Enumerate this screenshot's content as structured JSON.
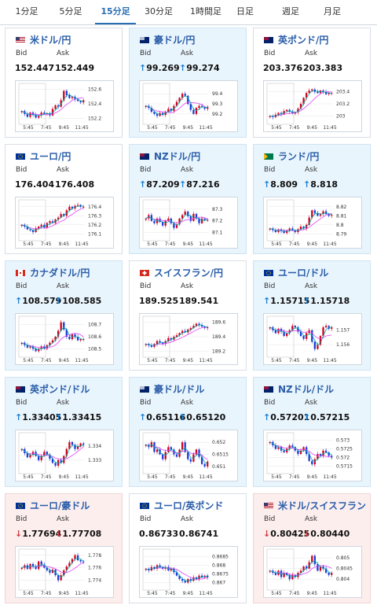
{
  "tabs": [
    "1分足",
    "5分足",
    "15分足",
    "30分足",
    "1時間足",
    "日足",
    "週足",
    "月足"
  ],
  "active_tab": 2,
  "bid_label": "Bid",
  "ask_label": "Ask",
  "arrow_up": "↑",
  "arrow_down": "↓",
  "colors": {
    "up_bg": "#e9f5fd",
    "down_bg": "#fdeeee",
    "candle_up": "#d0021b",
    "candle_down": "#1a3bd6",
    "ma1": "#e040fb",
    "ma2": "#00a8a8",
    "link": "#2a5da8"
  },
  "cards": [
    {
      "name": "米ドル/円",
      "flag": "us-jp",
      "trend": "flat",
      "bid": "152.447",
      "ask": "152.449",
      "chart_data": {
        "type": "candlestick",
        "x_ticks": [
          "5:45",
          "7:45",
          "9:45",
          "11:45"
        ],
        "y_ticks": [
          "152.6",
          "152.4",
          "152.2"
        ],
        "ylim": [
          152.15,
          152.65
        ],
        "closes": [
          152.3,
          152.26,
          152.22,
          152.28,
          152.25,
          152.21,
          152.24,
          152.28,
          152.26,
          152.27,
          152.24,
          152.33,
          152.38,
          152.36,
          152.45,
          152.58,
          152.52,
          152.48,
          152.5,
          152.46,
          152.44,
          152.42,
          152.45
        ]
      }
    },
    {
      "name": "豪ドル/円",
      "flag": "au-jp",
      "trend": "up",
      "bid": "99.269",
      "ask": "99.274",
      "chart_data": {
        "type": "candlestick",
        "x_ticks": [
          "5:45",
          "7:45",
          "9:45",
          "11:45"
        ],
        "y_ticks": [
          "99.4",
          "99.3",
          "99.2"
        ],
        "ylim": [
          99.12,
          99.48
        ],
        "closes": [
          99.28,
          99.26,
          99.22,
          99.2,
          99.18,
          99.21,
          99.19,
          99.22,
          99.25,
          99.23,
          99.28,
          99.32,
          99.36,
          99.4,
          99.38,
          99.3,
          99.24,
          99.2,
          99.26,
          99.28,
          99.27,
          99.25,
          99.27
        ]
      }
    },
    {
      "name": "英ポンド/円",
      "flag": "gb-jp",
      "trend": "flat",
      "bid": "203.376",
      "ask": "203.383",
      "chart_data": {
        "type": "candlestick",
        "x_ticks": [
          "5:45",
          "7:45",
          "9:45",
          "11:45"
        ],
        "y_ticks": [
          "203.4",
          "203.2",
          "203"
        ],
        "ylim": [
          202.9,
          203.5
        ],
        "closes": [
          203.0,
          202.98,
          203.02,
          203.05,
          203.03,
          203.08,
          203.1,
          203.07,
          203.04,
          203.06,
          203.12,
          203.2,
          203.3,
          203.38,
          203.42,
          203.44,
          203.4,
          203.38,
          203.42,
          203.4,
          203.36,
          203.38,
          203.38
        ]
      }
    },
    {
      "name": "ユーロ/円",
      "flag": "eu-jp",
      "trend": "flat",
      "bid": "176.404",
      "ask": "176.408",
      "chart_data": {
        "type": "candlestick",
        "x_ticks": [
          "5:45",
          "7:45",
          "9:45",
          "11:45"
        ],
        "y_ticks": [
          "176.4",
          "176.3",
          "176.2",
          "176.1"
        ],
        "ylim": [
          176.05,
          176.45
        ],
        "closes": [
          176.2,
          176.18,
          176.15,
          176.14,
          176.12,
          176.16,
          176.18,
          176.2,
          176.17,
          176.22,
          176.24,
          176.22,
          176.26,
          176.28,
          176.32,
          176.3,
          176.36,
          176.4,
          176.38,
          176.41,
          176.42,
          176.4,
          176.4
        ]
      }
    },
    {
      "name": "NZドル/円",
      "flag": "nz-jp",
      "trend": "up",
      "bid": "87.209",
      "ask": "87.216",
      "chart_data": {
        "type": "candlestick",
        "x_ticks": [
          "5:45",
          "7:45",
          "9:45",
          "11:45"
        ],
        "y_ticks": [
          "87.3",
          "87.2",
          "87.1"
        ],
        "ylim": [
          87.05,
          87.36
        ],
        "closes": [
          87.22,
          87.25,
          87.2,
          87.18,
          87.22,
          87.19,
          87.16,
          87.2,
          87.22,
          87.18,
          87.14,
          87.17,
          87.22,
          87.25,
          87.28,
          87.24,
          87.2,
          87.26,
          87.22,
          87.18,
          87.22,
          87.21,
          87.21
        ]
      }
    },
    {
      "name": "ランド/円",
      "flag": "za-jp",
      "trend": "up",
      "bid": "8.809",
      "ask": "8.818",
      "chart_data": {
        "type": "candlestick",
        "x_ticks": [
          "5:45",
          "7:45",
          "9:45",
          "11:45"
        ],
        "y_ticks": [
          "8.82",
          "8.81",
          "8.8",
          "8.79"
        ],
        "ylim": [
          8.785,
          8.825
        ],
        "closes": [
          8.796,
          8.794,
          8.792,
          8.795,
          8.793,
          8.791,
          8.794,
          8.796,
          8.794,
          8.792,
          8.795,
          8.798,
          8.796,
          8.8,
          8.808,
          8.816,
          8.813,
          8.81,
          8.812,
          8.815,
          8.812,
          8.81,
          8.811
        ]
      }
    },
    {
      "name": "カナダドル/円",
      "flag": "ca-jp",
      "trend": "up",
      "bid": "108.579",
      "ask": "108.585",
      "chart_data": {
        "type": "candlestick",
        "x_ticks": [
          "5:45",
          "7:45",
          "9:45",
          "11:45"
        ],
        "y_ticks": [
          "108.7",
          "108.6",
          "108.5"
        ],
        "ylim": [
          108.45,
          108.75
        ],
        "closes": [
          108.55,
          108.53,
          108.51,
          108.52,
          108.5,
          108.48,
          108.5,
          108.52,
          108.5,
          108.53,
          108.55,
          108.57,
          108.6,
          108.65,
          108.72,
          108.66,
          108.6,
          108.58,
          108.62,
          108.6,
          108.57,
          108.58,
          108.58
        ]
      }
    },
    {
      "name": "スイスフラン/円",
      "flag": "ch-jp",
      "trend": "flat",
      "bid": "189.525",
      "ask": "189.541",
      "chart_data": {
        "type": "candlestick",
        "x_ticks": [
          "5:45",
          "7:45",
          "9:45",
          "11:45"
        ],
        "y_ticks": [
          "189.6",
          "189.4",
          "189.2"
        ],
        "ylim": [
          189.15,
          189.65
        ],
        "closes": [
          189.3,
          189.28,
          189.26,
          189.3,
          189.34,
          189.32,
          189.3,
          189.34,
          189.38,
          189.36,
          189.4,
          189.42,
          189.45,
          189.48,
          189.46,
          189.5,
          189.52,
          189.55,
          189.58,
          189.56,
          189.54,
          189.52,
          189.53
        ]
      }
    },
    {
      "name": "ユーロ/ドル",
      "flag": "eu-us",
      "trend": "up",
      "bid": "1.15715",
      "ask": "1.15718",
      "chart_data": {
        "type": "candlestick",
        "x_ticks": [
          "5:45",
          "7:45",
          "9:45",
          "11:45"
        ],
        "y_ticks": [
          "1.157",
          "1.156"
        ],
        "ylim": [
          1.1553,
          1.1578
        ],
        "closes": [
          1.1572,
          1.157,
          1.1568,
          1.1571,
          1.1569,
          1.1566,
          1.1568,
          1.157,
          1.1573,
          1.1572,
          1.1569,
          1.1566,
          1.1564,
          1.1568,
          1.157,
          1.1562,
          1.1557,
          1.156,
          1.1566,
          1.1572,
          1.1573,
          1.1571,
          1.1572
        ]
      }
    },
    {
      "name": "英ポンド/ドル",
      "flag": "gb-us",
      "trend": "up",
      "bid": "1.33405",
      "ask": "1.33415",
      "chart_data": {
        "type": "candlestick",
        "x_ticks": [
          "5:45",
          "7:45",
          "9:45",
          "11:45"
        ],
        "y_ticks": [
          "1.334",
          "1.333"
        ],
        "ylim": [
          1.3322,
          1.3348
        ],
        "closes": [
          1.3338,
          1.3335,
          1.3332,
          1.3334,
          1.3336,
          1.3333,
          1.333,
          1.3333,
          1.3336,
          1.3334,
          1.3331,
          1.3328,
          1.3326,
          1.333,
          1.3328,
          1.3333,
          1.3338,
          1.3343,
          1.3341,
          1.3338,
          1.334,
          1.3342,
          1.3341
        ]
      }
    },
    {
      "name": "豪ドル/ドル",
      "flag": "au-us",
      "trend": "up",
      "bid": "0.65116",
      "ask": "0.65120",
      "chart_data": {
        "type": "candlestick",
        "x_ticks": [
          "5:45",
          "7:45",
          "9:45",
          "11:45"
        ],
        "y_ticks": [
          "0.652",
          "0.6515",
          "0.651"
        ],
        "ylim": [
          0.6508,
          0.6523
        ],
        "closes": [
          0.6519,
          0.6518,
          0.652,
          0.6516,
          0.6517,
          0.6515,
          0.6513,
          0.6516,
          0.6518,
          0.6517,
          0.6515,
          0.6514,
          0.6517,
          0.652,
          0.6516,
          0.6513,
          0.6512,
          0.6515,
          0.6517,
          0.6514,
          0.6511,
          0.651,
          0.6512
        ]
      }
    },
    {
      "name": "NZドル/ドル",
      "flag": "nz-us",
      "trend": "up",
      "bid": "0.57201",
      "ask": "0.57215",
      "chart_data": {
        "type": "candlestick",
        "x_ticks": [
          "5:45",
          "7:45",
          "9:45",
          "11:45"
        ],
        "y_ticks": [
          "0.573",
          "0.5725",
          "0.572",
          "0.5715"
        ],
        "ylim": [
          0.5712,
          0.5733
        ],
        "closes": [
          0.5729,
          0.5727,
          0.5725,
          0.5726,
          0.5724,
          0.5723,
          0.5725,
          0.5727,
          0.5726,
          0.5724,
          0.5722,
          0.5724,
          0.5726,
          0.5722,
          0.5718,
          0.5716,
          0.5719,
          0.5722,
          0.5721,
          0.5724,
          0.5723,
          0.5721,
          0.572
        ]
      }
    },
    {
      "name": "ユーロ/豪ドル",
      "flag": "eu-au",
      "trend": "down",
      "bid": "1.77694",
      "ask": "1.77708",
      "chart_data": {
        "type": "candlestick",
        "x_ticks": [
          "5:45",
          "7:45",
          "9:45",
          "11:45"
        ],
        "y_ticks": [
          "1.778",
          "1.776",
          "1.774"
        ],
        "ylim": [
          1.7728,
          1.7786
        ],
        "closes": [
          1.776,
          1.7764,
          1.7758,
          1.7766,
          1.7762,
          1.7758,
          1.777,
          1.7765,
          1.776,
          1.7756,
          1.7752,
          1.7757,
          1.7748,
          1.774,
          1.7748,
          1.7756,
          1.7762,
          1.7768,
          1.7774,
          1.778,
          1.7772,
          1.777,
          1.7769
        ]
      }
    },
    {
      "name": "ユーロ/英ポンド",
      "flag": "eu-gb",
      "trend": "flat",
      "bid": "0.86733",
      "ask": "0.86741",
      "chart_data": {
        "type": "candlestick",
        "x_ticks": [
          "5:45",
          "7:45",
          "9:45",
          "11:45"
        ],
        "y_ticks": [
          "0.8685",
          "0.868",
          "0.8675",
          "0.867"
        ],
        "ylim": [
          0.8667,
          0.8688
        ],
        "closes": [
          0.8678,
          0.8677,
          0.8679,
          0.8678,
          0.868,
          0.8679,
          0.8678,
          0.8679,
          0.8677,
          0.8678,
          0.8676,
          0.8674,
          0.8672,
          0.8671,
          0.867,
          0.8672,
          0.8671,
          0.8673,
          0.8672,
          0.8674,
          0.8673,
          0.8674,
          0.8673
        ]
      }
    },
    {
      "name": "米ドル/スイスフラン",
      "flag": "us-ch",
      "trend": "down",
      "bid": "0.80425",
      "ask": "0.80440",
      "chart_data": {
        "type": "candlestick",
        "x_ticks": [
          "5:45",
          "7:45",
          "9:45",
          "11:45"
        ],
        "y_ticks": [
          "0.805",
          "0.8045",
          "0.804"
        ],
        "ylim": [
          0.8036,
          0.8053
        ],
        "closes": [
          0.8044,
          0.8043,
          0.8042,
          0.8044,
          0.8041,
          0.8043,
          0.8042,
          0.804,
          0.8042,
          0.8041,
          0.8043,
          0.8044,
          0.8046,
          0.8045,
          0.8048,
          0.8051,
          0.8047,
          0.8044,
          0.8046,
          0.8045,
          0.8043,
          0.8042,
          0.8043
        ]
      }
    }
  ]
}
